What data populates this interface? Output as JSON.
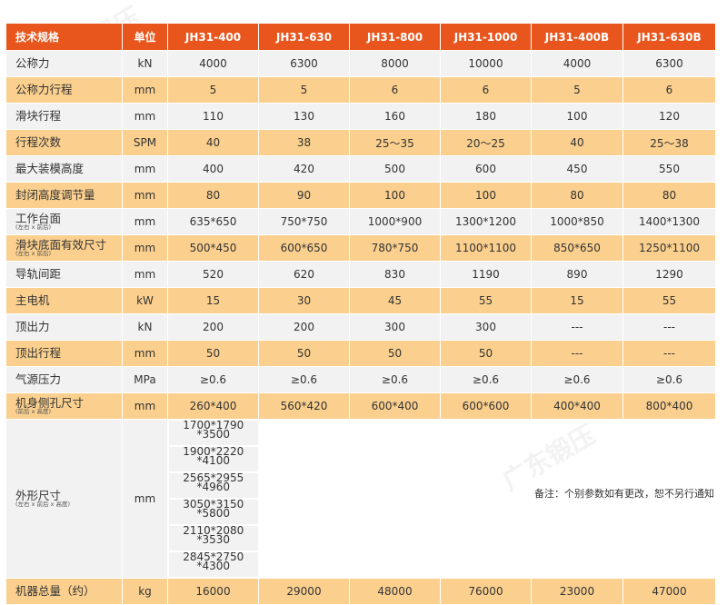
{
  "table": {
    "headers": [
      "技术规格",
      "单位",
      "JH31-400",
      "JH31-630",
      "JH31-800",
      "JH31-1000",
      "JH31-400B",
      "JH31-630B"
    ],
    "rows": [
      {
        "label": "公称力",
        "sub": "",
        "unit": "kN",
        "values": [
          "4000",
          "6300",
          "8000",
          "10000",
          "4000",
          "6300"
        ]
      },
      {
        "label": "公称力行程",
        "sub": "",
        "unit": "mm",
        "values": [
          "5",
          "5",
          "6",
          "6",
          "5",
          "6"
        ]
      },
      {
        "label": "滑块行程",
        "sub": "",
        "unit": "mm",
        "values": [
          "110",
          "130",
          "160",
          "180",
          "100",
          "120"
        ]
      },
      {
        "label": "行程次数",
        "sub": "",
        "unit": "SPM",
        "values": [
          "40",
          "38",
          "25～35",
          "20～25",
          "40",
          "25～38"
        ]
      },
      {
        "label": "最大装模高度",
        "sub": "",
        "unit": "mm",
        "values": [
          "400",
          "420",
          "500",
          "600",
          "450",
          "550"
        ]
      },
      {
        "label": "封闭高度调节量",
        "sub": "",
        "unit": "mm",
        "values": [
          "80",
          "90",
          "100",
          "100",
          "80",
          "80"
        ]
      },
      {
        "label": "工作台面",
        "sub": "(左右 x 前后)",
        "unit": "mm",
        "values": [
          "635*650",
          "750*750",
          "1000*900",
          "1300*1200",
          "1000*850",
          "1400*1300"
        ]
      },
      {
        "label": "滑块底面有效尺寸",
        "sub": "(左右 x 前后)",
        "unit": "mm",
        "values": [
          "500*450",
          "600*650",
          "780*750",
          "1100*1100",
          "850*650",
          "1250*1100"
        ]
      },
      {
        "label": "导轨间距",
        "sub": "",
        "unit": "mm",
        "values": [
          "520",
          "620",
          "830",
          "1190",
          "890",
          "1290"
        ]
      },
      {
        "label": "主电机",
        "sub": "",
        "unit": "kW",
        "values": [
          "15",
          "30",
          "45",
          "55",
          "15",
          "55"
        ]
      },
      {
        "label": "顶出力",
        "sub": "",
        "unit": "kN",
        "values": [
          "200",
          "200",
          "300",
          "300",
          "---",
          "---"
        ]
      },
      {
        "label": "顶出行程",
        "sub": "",
        "unit": "mm",
        "values": [
          "50",
          "50",
          "50",
          "50",
          "---",
          "---"
        ]
      },
      {
        "label": "气源压力",
        "sub": "",
        "unit": "MPa",
        "values": [
          "≥0.6",
          "≥0.6",
          "≥0.6",
          "≥0.6",
          "≥0.6",
          "≥0.6"
        ]
      },
      {
        "label": "机身侧孔尺寸",
        "sub": "(前后 x 高度)",
        "unit": "mm",
        "values": [
          "260*400",
          "560*420",
          "600*400",
          "600*600",
          "400*400",
          "800*400"
        ]
      },
      {
        "label": "外形尺寸",
        "sub": "(左右 x 前后 x 高度)",
        "unit": "mm",
        "values": [
          "1700*1790 *3500",
          "1900*2220 *4100",
          "2565*2955 *4960",
          "3050*3150 *5800",
          "2110*2080 *3530",
          "2845*2750 *4300"
        ]
      },
      {
        "label": "机器总量（约）",
        "sub": "",
        "unit": "kg",
        "values": [
          "16000",
          "29000",
          "48000",
          "76000",
          "23000",
          "47000"
        ]
      }
    ]
  },
  "note": "备注：个别参数如有更改，恕不另行通知",
  "watermark": "广东锻压",
  "colors": {
    "header": "#e8561e",
    "row_alt": "#fbd08e",
    "row_base": "#f2f2f2"
  }
}
